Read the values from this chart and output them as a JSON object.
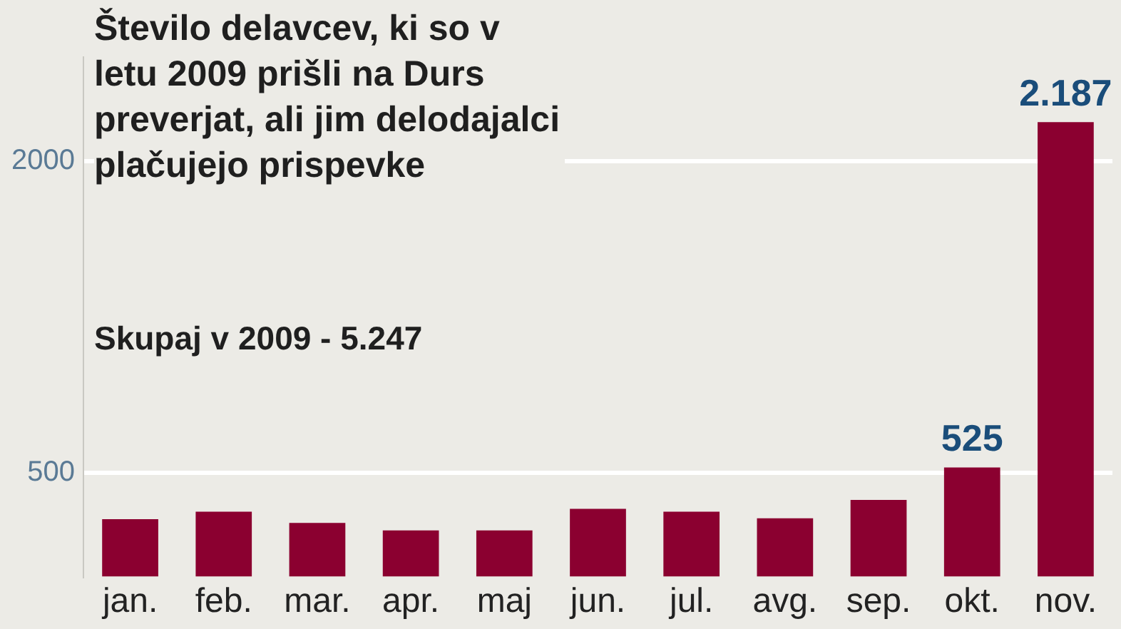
{
  "chart_data": {
    "type": "bar",
    "title": "Število delavcev, ki so v letu 2009 prišli na Durs preverjat, ali jim delodajalci plačujejo prispevke",
    "subtitle": "Skupaj v 2009 - 5.247",
    "categories": [
      "jan.",
      "feb.",
      "mar.",
      "apr.",
      "maj",
      "jun.",
      "jul.",
      "avg.",
      "sep.",
      "okt.",
      "nov."
    ],
    "values": [
      276,
      312,
      258,
      222,
      222,
      326,
      312,
      280,
      369,
      525,
      2187
    ],
    "value_labels": [
      null,
      null,
      null,
      null,
      null,
      null,
      null,
      null,
      null,
      "525",
      "2.187"
    ],
    "color": "#8b0030",
    "ylim": [
      0,
      2500
    ],
    "yticks": [
      500,
      2000
    ],
    "grid": "y",
    "legend": false
  }
}
